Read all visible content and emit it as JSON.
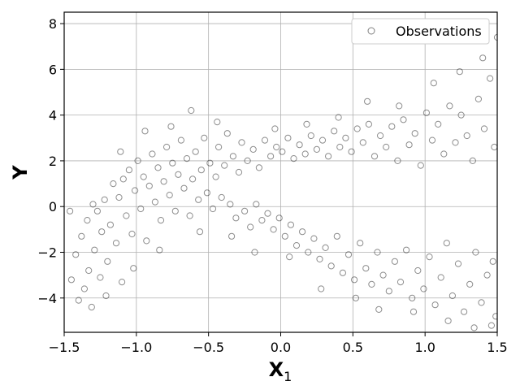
{
  "chart_data": {
    "type": "scatter",
    "xlabel": "X",
    "xlabel_subscript": "1",
    "ylabel": "Y",
    "xlim": [
      -1.5,
      1.5
    ],
    "ylim": [
      -5.5,
      8.5
    ],
    "xticks": [
      -1.5,
      -1.0,
      -0.5,
      0.0,
      0.5,
      1.0,
      1.5
    ],
    "xtick_labels": [
      "−1.5",
      "−1.0",
      "−0.5",
      "0.0",
      "0.5",
      "1.0",
      "1.5"
    ],
    "yticks": [
      -4,
      -2,
      0,
      2,
      4,
      6,
      8
    ],
    "ytick_labels": [
      "−4",
      "−2",
      "0",
      "2",
      "4",
      "6",
      "8"
    ],
    "grid": true,
    "legend_position": "top-right",
    "marker": "open-circle",
    "marker_color": "#000000",
    "series": [
      {
        "name": "Observations",
        "points": [
          [
            -1.45,
            -3.2
          ],
          [
            -1.42,
            -2.1
          ],
          [
            -1.4,
            -4.1
          ],
          [
            -1.38,
            -1.3
          ],
          [
            -1.36,
            -3.6
          ],
          [
            -1.34,
            -0.6
          ],
          [
            -1.33,
            -2.8
          ],
          [
            -1.31,
            -4.4
          ],
          [
            -1.29,
            -1.9
          ],
          [
            -1.27,
            -0.2
          ],
          [
            -1.25,
            -3.1
          ],
          [
            -1.24,
            -1.1
          ],
          [
            -1.22,
            0.3
          ],
          [
            -1.2,
            -2.4
          ],
          [
            -1.18,
            -0.8
          ],
          [
            -1.16,
            1.0
          ],
          [
            -1.14,
            -1.6
          ],
          [
            -1.12,
            0.4
          ],
          [
            -1.1,
            -3.3
          ],
          [
            -1.09,
            1.2
          ],
          [
            -1.07,
            -0.4
          ],
          [
            -1.05,
            1.6
          ],
          [
            -1.03,
            -1.2
          ],
          [
            -1.01,
            0.7
          ],
          [
            -0.99,
            2.0
          ],
          [
            -0.97,
            -0.1
          ],
          [
            -0.95,
            1.3
          ],
          [
            -0.93,
            -1.5
          ],
          [
            -0.91,
            0.9
          ],
          [
            -0.89,
            2.3
          ],
          [
            -0.87,
            0.2
          ],
          [
            -0.85,
            1.7
          ],
          [
            -0.83,
            -0.6
          ],
          [
            -0.81,
            1.1
          ],
          [
            -0.79,
            2.6
          ],
          [
            -0.77,
            0.5
          ],
          [
            -0.75,
            1.9
          ],
          [
            -0.73,
            -0.2
          ],
          [
            -0.71,
            1.4
          ],
          [
            -0.69,
            2.9
          ],
          [
            -0.67,
            0.8
          ],
          [
            -0.65,
            2.1
          ],
          [
            -0.63,
            -0.4
          ],
          [
            -0.61,
            1.2
          ],
          [
            -0.59,
            2.4
          ],
          [
            -0.57,
            0.3
          ],
          [
            -0.55,
            1.6
          ],
          [
            -0.53,
            3.0
          ],
          [
            -0.51,
            0.6
          ],
          [
            -0.49,
            1.9
          ],
          [
            -0.47,
            -0.1
          ],
          [
            -0.45,
            1.3
          ],
          [
            -0.43,
            2.6
          ],
          [
            -0.41,
            0.4
          ],
          [
            -0.39,
            1.8
          ],
          [
            -0.37,
            3.2
          ],
          [
            -0.35,
            0.1
          ],
          [
            -0.33,
            2.2
          ],
          [
            -0.31,
            -0.5
          ],
          [
            -0.29,
            1.5
          ],
          [
            -0.27,
            2.8
          ],
          [
            -0.25,
            -0.2
          ],
          [
            -0.23,
            2.0
          ],
          [
            -0.21,
            -0.9
          ],
          [
            -0.19,
            2.5
          ],
          [
            -0.17,
            0.1
          ],
          [
            -0.15,
            1.7
          ],
          [
            -0.13,
            -0.6
          ],
          [
            -0.11,
            2.9
          ],
          [
            -0.09,
            -0.3
          ],
          [
            -0.07,
            2.2
          ],
          [
            -0.05,
            -1.0
          ],
          [
            -0.03,
            2.6
          ],
          [
            -0.01,
            -0.5
          ],
          [
            0.01,
            2.4
          ],
          [
            0.03,
            -1.3
          ],
          [
            0.05,
            3.0
          ],
          [
            0.07,
            -0.8
          ],
          [
            0.09,
            2.1
          ],
          [
            0.11,
            -1.7
          ],
          [
            0.13,
            2.7
          ],
          [
            0.15,
            -1.1
          ],
          [
            0.17,
            2.3
          ],
          [
            0.19,
            -2.0
          ],
          [
            0.21,
            3.1
          ],
          [
            0.23,
            -1.4
          ],
          [
            0.25,
            2.5
          ],
          [
            0.27,
            -2.3
          ],
          [
            0.29,
            2.9
          ],
          [
            0.31,
            -1.8
          ],
          [
            0.33,
            2.2
          ],
          [
            0.35,
            -2.6
          ],
          [
            0.37,
            3.3
          ],
          [
            0.39,
            -1.3
          ],
          [
            0.41,
            2.6
          ],
          [
            0.43,
            -2.9
          ],
          [
            0.45,
            3.0
          ],
          [
            0.47,
            -2.1
          ],
          [
            0.49,
            2.4
          ],
          [
            0.51,
            -3.2
          ],
          [
            0.53,
            3.4
          ],
          [
            0.55,
            -1.6
          ],
          [
            0.57,
            2.8
          ],
          [
            0.59,
            -2.7
          ],
          [
            0.61,
            3.6
          ],
          [
            0.63,
            -3.4
          ],
          [
            0.65,
            2.2
          ],
          [
            0.67,
            -2.0
          ],
          [
            0.69,
            3.1
          ],
          [
            0.71,
            -3.0
          ],
          [
            0.73,
            2.6
          ],
          [
            0.75,
            -3.7
          ],
          [
            0.77,
            3.5
          ],
          [
            0.79,
            -2.4
          ],
          [
            0.81,
            2.0
          ],
          [
            0.83,
            -3.3
          ],
          [
            0.85,
            3.8
          ],
          [
            0.87,
            -1.9
          ],
          [
            0.89,
            2.7
          ],
          [
            0.91,
            -4.0
          ],
          [
            0.93,
            3.2
          ],
          [
            0.95,
            -2.8
          ],
          [
            0.97,
            1.8
          ],
          [
            0.99,
            -3.6
          ],
          [
            1.01,
            4.1
          ],
          [
            1.03,
            -2.2
          ],
          [
            1.05,
            2.9
          ],
          [
            1.07,
            -4.3
          ],
          [
            1.09,
            3.6
          ],
          [
            1.11,
            -3.1
          ],
          [
            1.13,
            2.3
          ],
          [
            1.15,
            -1.6
          ],
          [
            1.17,
            4.4
          ],
          [
            1.19,
            -3.9
          ],
          [
            1.21,
            2.8
          ],
          [
            1.23,
            -2.5
          ],
          [
            1.25,
            4.0
          ],
          [
            1.27,
            -4.6
          ],
          [
            1.29,
            3.1
          ],
          [
            1.31,
            -3.4
          ],
          [
            1.33,
            2.0
          ],
          [
            1.35,
            -2.0
          ],
          [
            1.37,
            4.7
          ],
          [
            1.39,
            -4.2
          ],
          [
            1.41,
            3.4
          ],
          [
            1.43,
            -3.0
          ],
          [
            1.45,
            5.6
          ],
          [
            1.47,
            -2.4
          ],
          [
            1.48,
            2.6
          ],
          [
            1.49,
            -4.8
          ],
          [
            -1.46,
            -0.2
          ],
          [
            -1.3,
            0.1
          ],
          [
            -1.21,
            -3.9
          ],
          [
            -1.11,
            2.4
          ],
          [
            -1.02,
            -2.7
          ],
          [
            -0.94,
            3.3
          ],
          [
            -0.84,
            -1.9
          ],
          [
            -0.76,
            3.5
          ],
          [
            -0.62,
            4.2
          ],
          [
            -0.56,
            -1.1
          ],
          [
            -0.44,
            3.7
          ],
          [
            -0.34,
            -1.3
          ],
          [
            -0.18,
            -2.0
          ],
          [
            -0.04,
            3.4
          ],
          [
            0.06,
            -2.2
          ],
          [
            0.18,
            3.6
          ],
          [
            0.28,
            -3.6
          ],
          [
            0.4,
            3.9
          ],
          [
            0.52,
            -4.0
          ],
          [
            0.6,
            4.6
          ],
          [
            0.68,
            -4.5
          ],
          [
            0.82,
            4.4
          ],
          [
            0.92,
            -4.6
          ],
          [
            1.06,
            5.4
          ],
          [
            1.16,
            -5.0
          ],
          [
            1.24,
            5.9
          ],
          [
            1.34,
            -5.3
          ],
          [
            1.4,
            6.5
          ],
          [
            1.46,
            -5.2
          ],
          [
            1.5,
            7.4
          ]
        ]
      }
    ]
  }
}
